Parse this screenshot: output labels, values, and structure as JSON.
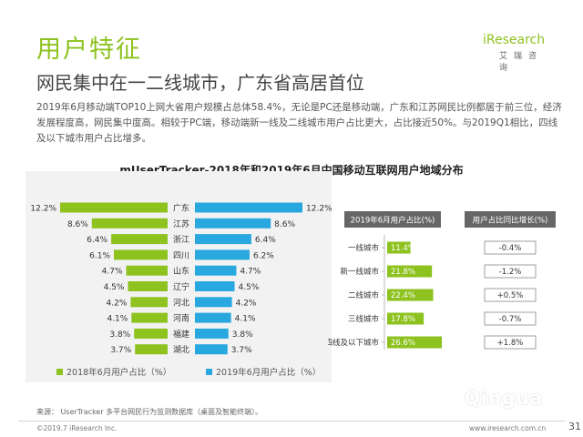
{
  "header": {
    "title": "用户特征",
    "subtitle": "网民集中在一二线城市，广东省高居首位",
    "description": "2019年6月移动端TOP10上网大省用户规模占总体58.4%，无论是PC还是移动端，广东和江苏网民比例都居于前三位，经济发展程度高，网民集中度高。相较于PC端，移动端新一线及二线城市用户占比更大，占比接近50%。与2019Q1相比，四线及以下城市用户占比增多。",
    "logo_text": "iResearch",
    "logo_sub": "艾瑞咨询"
  },
  "chart_data": [
    {
      "type": "bar",
      "title": "mUserTracker-2018年和2019年6月中国移动互联网用户地域分布",
      "categories": [
        "广东",
        "江苏",
        "浙江",
        "四川",
        "山东",
        "辽宁",
        "河北",
        "河南",
        "福建",
        "湖北"
      ],
      "series": [
        {
          "name": "2018年6月用户占比（%）",
          "values": [
            12.2,
            8.6,
            6.4,
            6.1,
            4.7,
            4.5,
            4.2,
            4.1,
            3.8,
            3.7
          ],
          "value_labels": [
            "12.2%",
            "8.6%",
            "6.4%",
            "6.1%",
            "4.7%",
            "4.5%",
            "4.2%",
            "4.1%",
            "3.8%",
            "3.7%"
          ],
          "color": "#8dc21f"
        },
        {
          "name": "2019年6月用户占比（%）",
          "values": [
            12.2,
            8.6,
            6.4,
            6.2,
            4.7,
            4.5,
            4.2,
            4.1,
            3.8,
            3.7
          ],
          "value_labels": [
            "12.2%",
            "8.6%",
            "6.4%",
            "6.2%",
            "4.7%",
            "4.5%",
            "4.2%",
            "4.1%",
            "3.8%",
            "3.7%"
          ],
          "color": "#29a8e0"
        }
      ]
    },
    {
      "type": "table",
      "columns": [
        "2019年6月用户占比(%)",
        "用户占比同比增长(%)"
      ],
      "categories": [
        "一线城市",
        "新一线城市",
        "二线城市",
        "三线城市",
        "四线及以下城市"
      ],
      "values": [
        11.4,
        21.8,
        22.4,
        17.8,
        26.6
      ],
      "value_labels": [
        "11.4%",
        "21.8%",
        "22.4%",
        "17.8%",
        "26.6%"
      ],
      "growth": [
        "-0.4%",
        "-1.2%",
        "+0.5%",
        "-0.7%",
        "+1.8%"
      ],
      "bar_color": "#8dc21f",
      "header_color": "#666666"
    }
  ],
  "footer": {
    "source": "来源：  UserTracker 多平台网民行为监测数据库（桌面及智能终端）。",
    "copyright": "©2019.7 iResearch Inc.",
    "website": "www.iresearch.com.cn",
    "page_number": "31",
    "watermark": "Qingua"
  },
  "colors": {
    "accent": "#8dc21f",
    "blue": "#29a8e0",
    "gray_bg": "#f2f2f2"
  }
}
